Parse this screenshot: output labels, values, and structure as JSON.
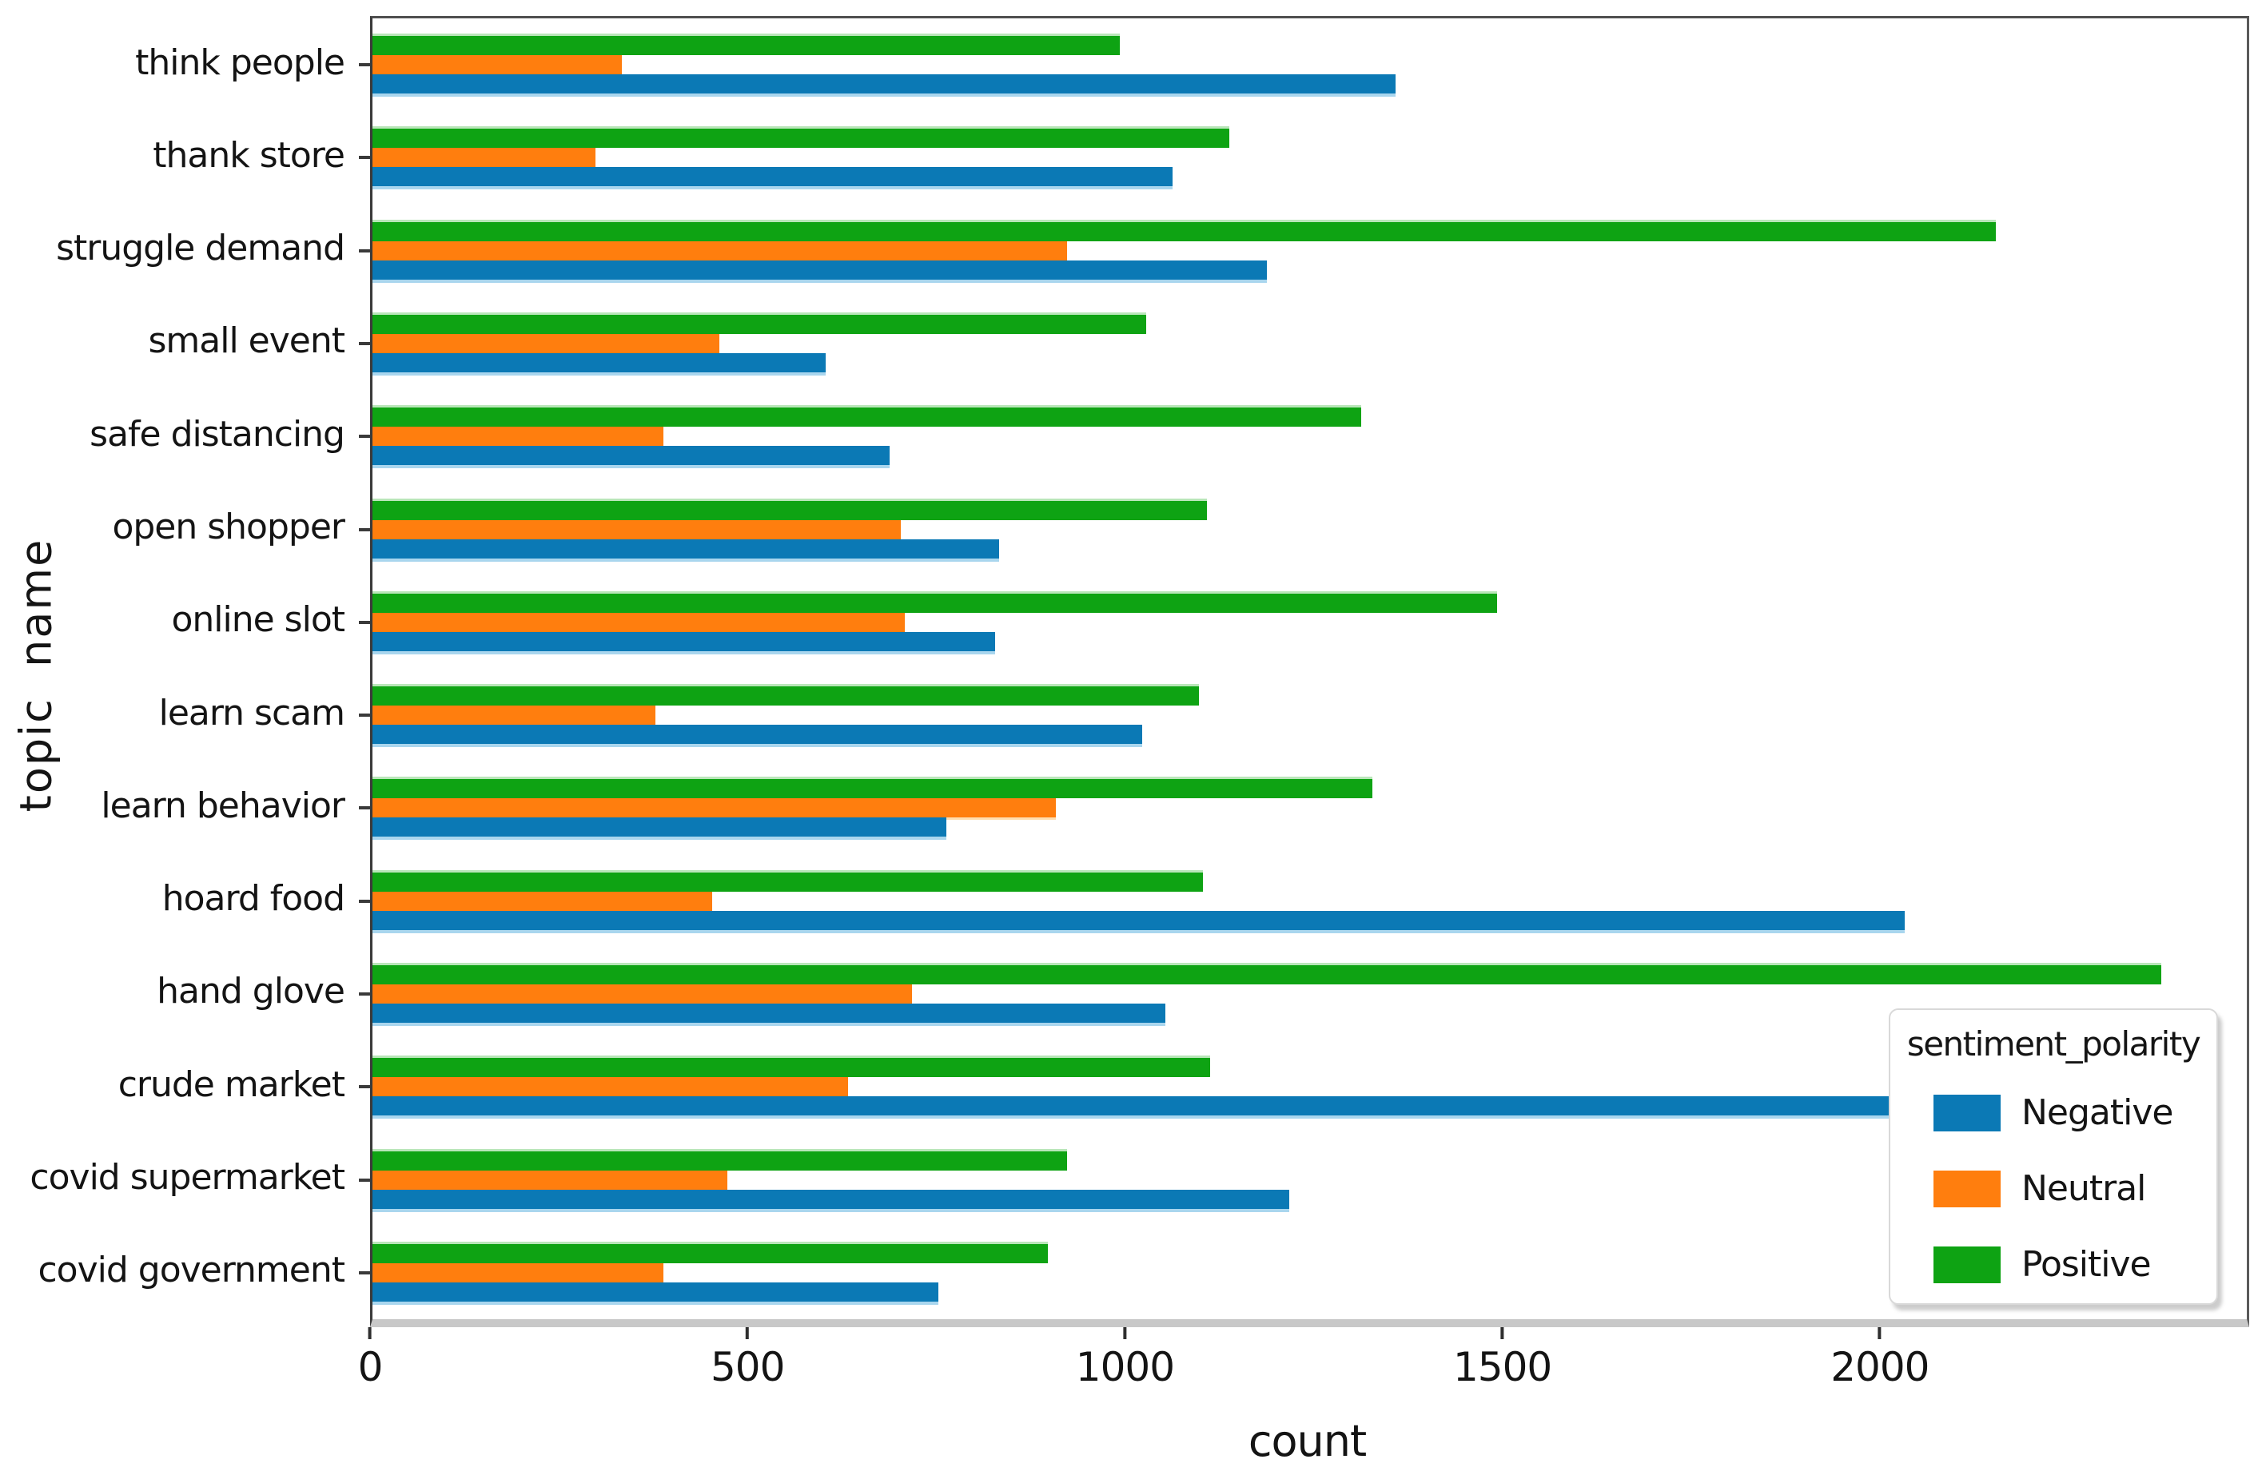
{
  "chart_data": {
    "type": "bar",
    "orientation": "horizontal",
    "title": "",
    "xlabel": "count",
    "ylabel": "topic  name",
    "xlim": [
      0,
      2483
    ],
    "xticks": [
      0,
      500,
      1000,
      1500,
      2000
    ],
    "grid": false,
    "legend_title": "sentiment_polarity",
    "legend_position": "lower right",
    "bar_display_order_top_to_bottom": [
      "Positive",
      "Neutral",
      "Negative"
    ],
    "categories": [
      "think people",
      "thank store",
      "struggle demand",
      "small event",
      "safe distancing",
      "open shopper",
      "online slot",
      "learn scam",
      "learn behavior",
      "hoard food",
      "hand glove",
      "crude market",
      "covid supermarket",
      "covid government"
    ],
    "series": [
      {
        "name": "Negative",
        "color": "#0b79b5",
        "values": [
          1355,
          1060,
          1185,
          600,
          685,
          830,
          825,
          1020,
          760,
          2030,
          1050,
          2010,
          1215,
          750
        ]
      },
      {
        "name": "Neutral",
        "color": "#ff7e0e",
        "values": [
          330,
          295,
          920,
          460,
          385,
          700,
          705,
          375,
          905,
          450,
          715,
          630,
          470,
          385
        ]
      },
      {
        "name": "Positive",
        "color": "#0ea313",
        "values": [
          990,
          1135,
          2150,
          1025,
          1310,
          1105,
          1490,
          1095,
          1325,
          1100,
          2370,
          1110,
          920,
          895
        ]
      }
    ]
  }
}
